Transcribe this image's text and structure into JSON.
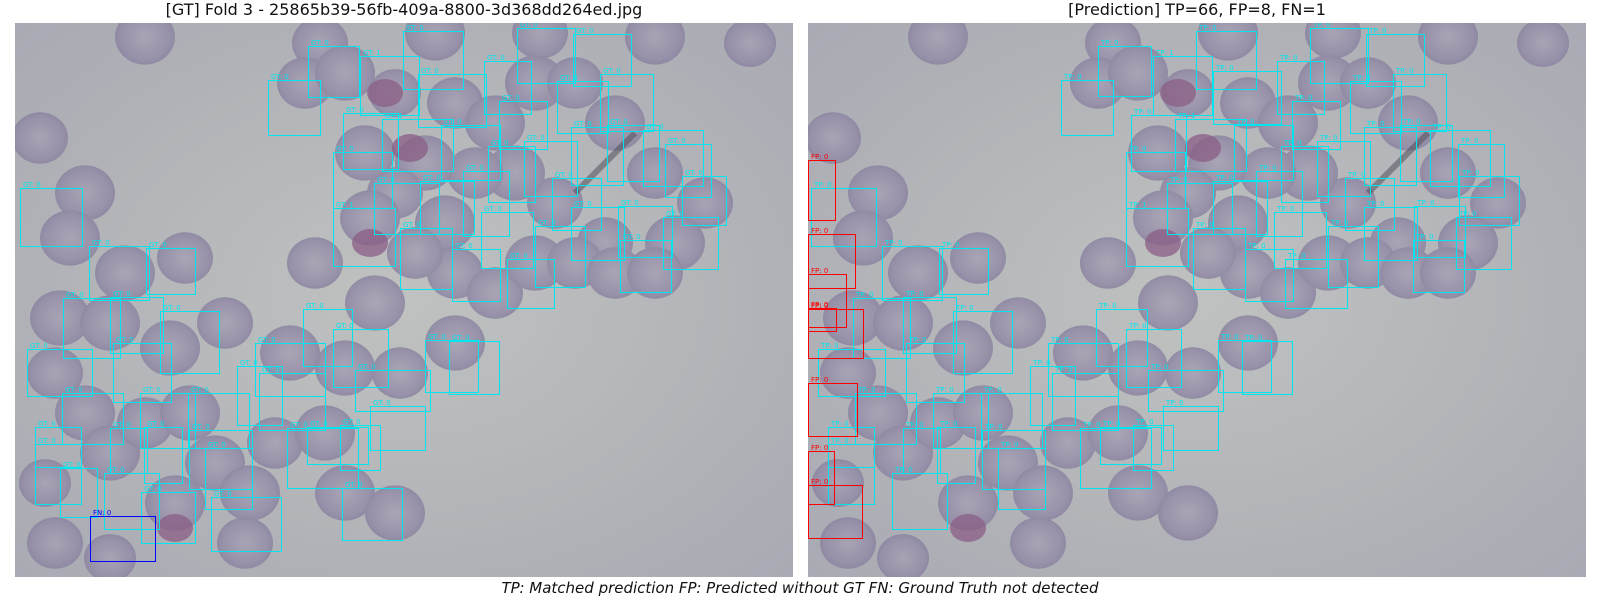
{
  "left_panel": {
    "title": "[GT] Fold 3 - 25865b39-56fb-409a-8800-3d368dd264ed.jpg",
    "box_label": "GT: 0",
    "box_label_alt": "GT: 1",
    "fn_label": "FN: 0",
    "box_color": "#00e5ee",
    "fn_color": "#0000ff"
  },
  "right_panel": {
    "title": "[Prediction] TP=66, FP=8, FN=1",
    "box_label": "TP: 0",
    "box_label_alt": "TP: 1",
    "fp_label": "FP: 0",
    "box_color": "#00e5ee",
    "fp_color": "#ff0000"
  },
  "legend": {
    "text": "TP: Matched prediction   FP: Predicted without GT   FN: Ground Truth not detected"
  },
  "counts": {
    "TP": 66,
    "FP": 8,
    "FN": 1
  }
}
